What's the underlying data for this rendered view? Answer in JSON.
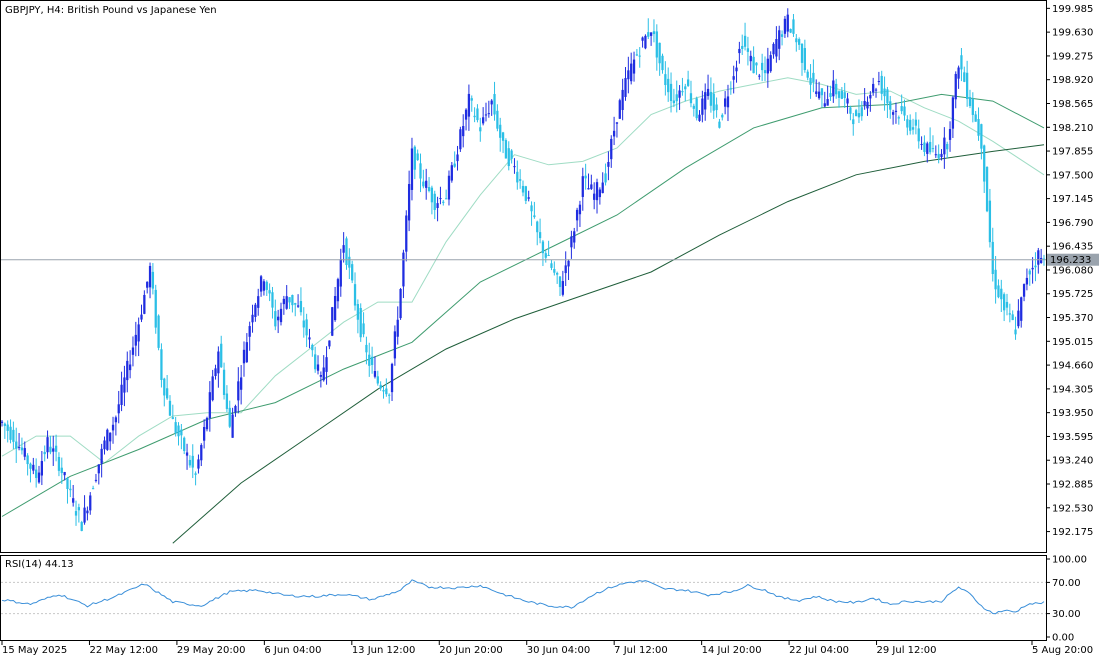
{
  "window": {
    "symbol_line": "GBPJPY, H4:  British Pound vs Japanese Yen"
  },
  "colors": {
    "bull": "#1f2de0",
    "bear": "#2bbfe6",
    "ma_fast": "#9fdcc4",
    "ma_mid": "#3f9c6f",
    "ma_slow": "#1f5e3a",
    "rsi": "#3a8fd9",
    "grid": "#c8c8c8",
    "price_line": "#9aa3ad",
    "price_badge": "#9aa3ad"
  },
  "price_axis": {
    "ticks": [
      "199.985",
      "199.630",
      "199.275",
      "198.920",
      "198.565",
      "198.210",
      "197.855",
      "197.500",
      "197.145",
      "196.790",
      "196.435",
      "196.080",
      "195.725",
      "195.370",
      "195.015",
      "194.660",
      "194.305",
      "193.950",
      "193.595",
      "193.240",
      "192.885",
      "192.530",
      "192.175"
    ],
    "range": [
      191.9,
      200.05
    ]
  },
  "current_price": "196.233",
  "time_axis": {
    "labels": [
      "15 May 2025",
      "22 May 12:00",
      "29 May 20:00",
      "6 Jun 04:00",
      "13 Jun 12:00",
      "20 Jun 20:00",
      "30 Jun 04:00",
      "7 Jul 12:00",
      "14 Jul 20:00",
      "22 Jul 04:00",
      "29 Jul 12:00",
      "5 Aug 20:00"
    ]
  },
  "rsi_panel": {
    "title": "RSI(14) 44.13",
    "levels": [
      "100.00",
      "70.00",
      "30.00",
      "0.00"
    ],
    "range": [
      0,
      100
    ],
    "dashed_levels": [
      70,
      30
    ]
  },
  "chart_data": {
    "type": "candlestick",
    "title": "GBPJPY, H4: British Pound vs Japanese Yen",
    "x_labels": [
      "15 May 2025",
      "22 May 12:00",
      "29 May 20:00",
      "6 Jun 04:00",
      "13 Jun 12:00",
      "20 Jun 20:00",
      "30 Jun 04:00",
      "7 Jul 12:00",
      "14 Jul 20:00",
      "22 Jul 04:00",
      "29 Jul 12:00",
      "5 Aug 20:00"
    ],
    "close_path": [
      [
        0,
        193.8
      ],
      [
        4,
        193.6
      ],
      [
        8,
        193.3
      ],
      [
        12,
        193.0
      ],
      [
        16,
        193.5
      ],
      [
        20,
        193.2
      ],
      [
        24,
        192.7
      ],
      [
        28,
        192.3
      ],
      [
        32,
        192.9
      ],
      [
        36,
        193.5
      ],
      [
        40,
        193.9
      ],
      [
        44,
        194.6
      ],
      [
        48,
        195.3
      ],
      [
        52,
        196.1
      ],
      [
        56,
        194.5
      ],
      [
        60,
        193.8
      ],
      [
        64,
        193.4
      ],
      [
        68,
        193.0
      ],
      [
        72,
        193.9
      ],
      [
        76,
        194.9
      ],
      [
        80,
        193.7
      ],
      [
        84,
        194.6
      ],
      [
        88,
        195.5
      ],
      [
        92,
        196.0
      ],
      [
        96,
        195.3
      ],
      [
        100,
        195.7
      ],
      [
        104,
        195.5
      ],
      [
        108,
        195.0
      ],
      [
        112,
        194.4
      ],
      [
        116,
        195.4
      ],
      [
        120,
        196.5
      ],
      [
        124,
        195.6
      ],
      [
        128,
        194.8
      ],
      [
        132,
        194.4
      ],
      [
        136,
        194.3
      ],
      [
        140,
        195.8
      ],
      [
        144,
        197.8
      ],
      [
        148,
        197.4
      ],
      [
        152,
        197.1
      ],
      [
        156,
        197.2
      ],
      [
        160,
        197.9
      ],
      [
        164,
        198.6
      ],
      [
        168,
        198.2
      ],
      [
        172,
        198.6
      ],
      [
        176,
        197.9
      ],
      [
        180,
        197.6
      ],
      [
        184,
        197.2
      ],
      [
        188,
        196.6
      ],
      [
        192,
        196.2
      ],
      [
        196,
        195.8
      ],
      [
        200,
        196.5
      ],
      [
        204,
        197.4
      ],
      [
        208,
        197.2
      ],
      [
        212,
        197.5
      ],
      [
        216,
        198.4
      ],
      [
        220,
        199.0
      ],
      [
        224,
        199.4
      ],
      [
        228,
        199.7
      ],
      [
        232,
        199.0
      ],
      [
        236,
        198.6
      ],
      [
        240,
        198.9
      ],
      [
        244,
        198.4
      ],
      [
        248,
        198.7
      ],
      [
        252,
        198.3
      ],
      [
        256,
        198.9
      ],
      [
        260,
        199.5
      ],
      [
        264,
        199.1
      ],
      [
        268,
        199.0
      ],
      [
        272,
        199.5
      ],
      [
        276,
        199.8
      ],
      [
        280,
        199.4
      ],
      [
        284,
        198.9
      ],
      [
        288,
        198.6
      ],
      [
        292,
        198.8
      ],
      [
        296,
        198.6
      ],
      [
        300,
        198.3
      ],
      [
        304,
        198.7
      ],
      [
        308,
        198.9
      ],
      [
        312,
        198.5
      ],
      [
        316,
        198.4
      ],
      [
        320,
        198.2
      ],
      [
        324,
        197.9
      ],
      [
        328,
        197.8
      ],
      [
        332,
        198.0
      ],
      [
        336,
        199.2
      ],
      [
        340,
        198.6
      ],
      [
        344,
        198.0
      ],
      [
        348,
        196.0
      ],
      [
        352,
        195.5
      ],
      [
        356,
        195.2
      ],
      [
        360,
        196.0
      ],
      [
        364,
        196.3
      ],
      [
        366,
        196.2
      ]
    ],
    "moving_averages": [
      {
        "name": "",
        "points": [
          [
            0,
            193.3
          ],
          [
            12,
            193.6
          ],
          [
            24,
            193.6
          ],
          [
            36,
            193.2
          ],
          [
            48,
            193.6
          ],
          [
            60,
            193.9
          ],
          [
            72,
            193.95
          ],
          [
            84,
            193.95
          ],
          [
            96,
            194.5
          ],
          [
            108,
            194.9
          ],
          [
            120,
            195.3
          ],
          [
            132,
            195.6
          ],
          [
            144,
            195.6
          ],
          [
            156,
            196.5
          ],
          [
            168,
            197.2
          ],
          [
            180,
            197.8
          ],
          [
            192,
            197.65
          ],
          [
            204,
            197.7
          ],
          [
            216,
            197.9
          ],
          [
            228,
            198.4
          ],
          [
            240,
            198.6
          ],
          [
            252,
            198.75
          ],
          [
            264,
            198.85
          ],
          [
            276,
            198.95
          ],
          [
            288,
            198.85
          ],
          [
            300,
            198.7
          ],
          [
            312,
            198.75
          ],
          [
            324,
            198.5
          ],
          [
            336,
            198.3
          ],
          [
            348,
            198.0
          ],
          [
            366,
            197.5
          ]
        ]
      },
      {
        "name": "",
        "points": [
          [
            0,
            192.4
          ],
          [
            24,
            193.0
          ],
          [
            48,
            193.4
          ],
          [
            72,
            193.85
          ],
          [
            96,
            194.1
          ],
          [
            120,
            194.6
          ],
          [
            144,
            195.0
          ],
          [
            168,
            195.9
          ],
          [
            192,
            196.4
          ],
          [
            216,
            196.9
          ],
          [
            240,
            197.6
          ],
          [
            264,
            198.2
          ],
          [
            288,
            198.5
          ],
          [
            312,
            198.55
          ],
          [
            330,
            198.7
          ],
          [
            348,
            198.6
          ],
          [
            366,
            198.2
          ]
        ]
      },
      {
        "name": "",
        "points": [
          [
            60,
            192.0
          ],
          [
            84,
            192.9
          ],
          [
            108,
            193.6
          ],
          [
            132,
            194.3
          ],
          [
            156,
            194.9
          ],
          [
            180,
            195.35
          ],
          [
            204,
            195.7
          ],
          [
            228,
            196.05
          ],
          [
            252,
            196.6
          ],
          [
            276,
            197.1
          ],
          [
            300,
            197.5
          ],
          [
            324,
            197.7
          ],
          [
            348,
            197.85
          ],
          [
            366,
            197.95
          ]
        ]
      }
    ],
    "rsi": {
      "name": "RSI(14)",
      "current": 44.13,
      "points": [
        [
          0,
          48
        ],
        [
          10,
          42
        ],
        [
          20,
          55
        ],
        [
          30,
          40
        ],
        [
          40,
          52
        ],
        [
          50,
          68
        ],
        [
          60,
          45
        ],
        [
          70,
          40
        ],
        [
          80,
          58
        ],
        [
          90,
          60
        ],
        [
          100,
          53
        ],
        [
          110,
          52
        ],
        [
          120,
          55
        ],
        [
          130,
          48
        ],
        [
          140,
          60
        ],
        [
          144,
          72
        ],
        [
          150,
          64
        ],
        [
          160,
          63
        ],
        [
          168,
          66
        ],
        [
          176,
          55
        ],
        [
          184,
          46
        ],
        [
          192,
          40
        ],
        [
          200,
          38
        ],
        [
          208,
          55
        ],
        [
          214,
          64
        ],
        [
          220,
          70
        ],
        [
          226,
          72
        ],
        [
          232,
          62
        ],
        [
          240,
          60
        ],
        [
          248,
          54
        ],
        [
          256,
          58
        ],
        [
          262,
          66
        ],
        [
          268,
          60
        ],
        [
          274,
          50
        ],
        [
          280,
          47
        ],
        [
          286,
          52
        ],
        [
          292,
          46
        ],
        [
          300,
          44
        ],
        [
          306,
          50
        ],
        [
          312,
          42
        ],
        [
          318,
          46
        ],
        [
          324,
          45
        ],
        [
          330,
          46
        ],
        [
          336,
          64
        ],
        [
          340,
          55
        ],
        [
          344,
          40
        ],
        [
          348,
          30
        ],
        [
          352,
          34
        ],
        [
          356,
          32
        ],
        [
          360,
          42
        ],
        [
          366,
          44
        ]
      ],
      "levels": [
        70,
        30
      ],
      "ylim": [
        0,
        100
      ]
    },
    "ylim": [
      191.9,
      200.05
    ]
  }
}
